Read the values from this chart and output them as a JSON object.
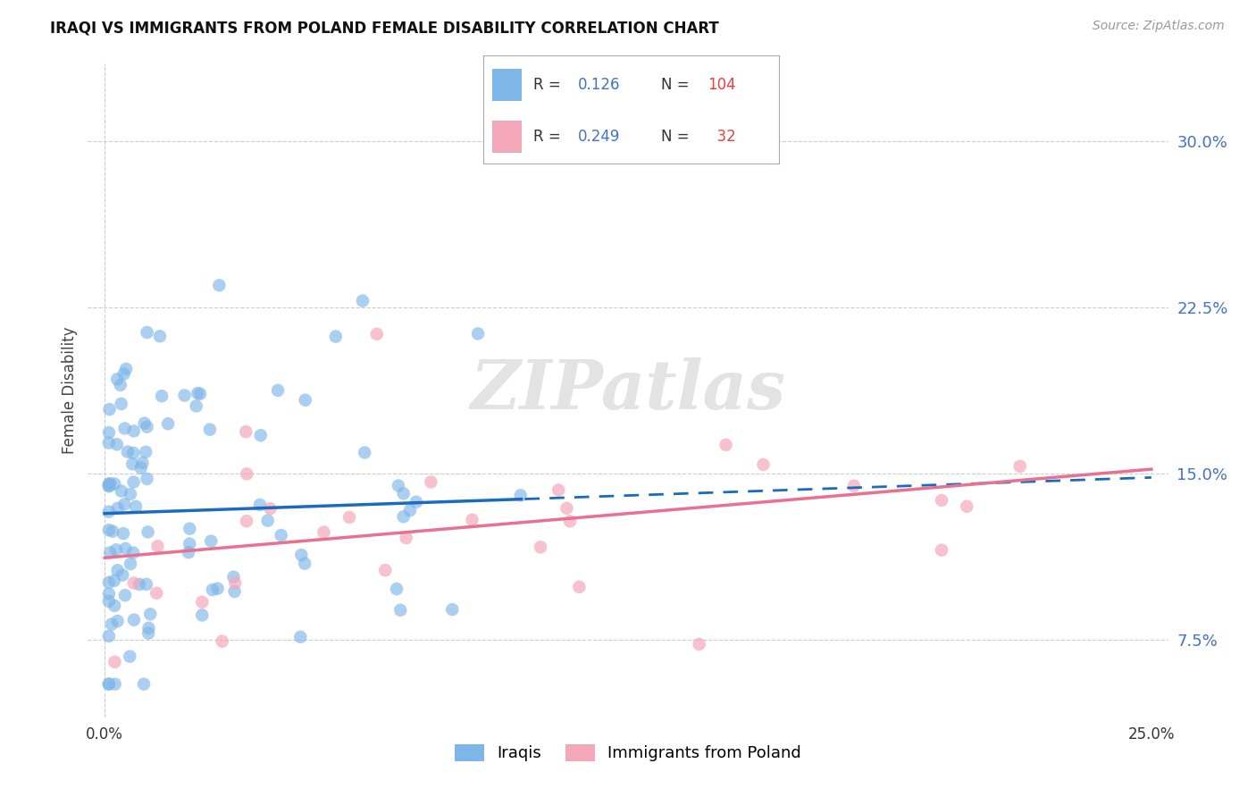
{
  "title": "IRAQI VS IMMIGRANTS FROM POLAND FEMALE DISABILITY CORRELATION CHART",
  "source": "Source: ZipAtlas.com",
  "ylabel": "Female Disability",
  "ytick_values": [
    0.075,
    0.15,
    0.225,
    0.3
  ],
  "ytick_labels": [
    "7.5%",
    "15.0%",
    "22.5%",
    "30.0%"
  ],
  "xlim": [
    0.0,
    0.25
  ],
  "ylim": [
    0.04,
    0.335
  ],
  "iraqis_color": "#7eb6e8",
  "poland_color": "#f4a7b9",
  "iraqis_line_color": "#1a6bbf",
  "poland_line_color": "#e87090",
  "iraqis_R": "0.126",
  "iraqis_N": "104",
  "poland_R": "0.249",
  "poland_N": "32",
  "legend_label_color": "#333333",
  "legend_val_color": "#4472c4",
  "legend_n_color": "#e84040",
  "grid_color": "#cccccc",
  "watermark": "ZIPatlas",
  "title_fontsize": 12,
  "source_fontsize": 10,
  "ytick_color": "#4472c4",
  "xtick_color": "#333333",
  "iraqis_line_start": 0.0,
  "iraqis_line_end_solid": 0.1,
  "iraqis_line_end_dashed": 0.25,
  "iraqis_intercept": 0.132,
  "iraqis_slope": 0.065,
  "poland_intercept": 0.112,
  "poland_slope": 0.16
}
